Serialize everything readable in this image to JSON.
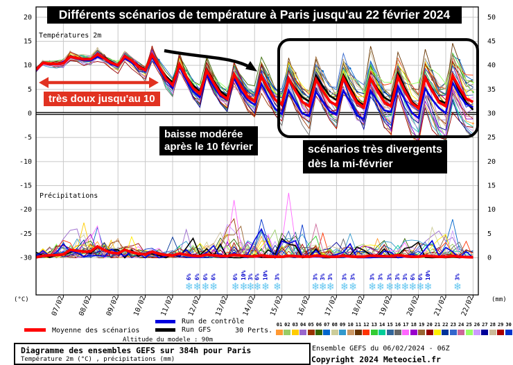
{
  "title": "Différents scénarios de température à Paris jusqu'au 22 février 2024",
  "annotations": {
    "mild": "très doux jusqu'au 10",
    "drop_line1": "baisse modérée",
    "drop_line2": "après le 10 février",
    "divergent_line1": "scénarios très divergents",
    "divergent_line2": "dès la mi-février"
  },
  "sections": {
    "temperature_label": "Températures 2m",
    "precipitation_label": "Précipitations"
  },
  "axes": {
    "left_unit": "(°C)",
    "right_unit": "(mm)",
    "left_ticks": [
      "20",
      "15",
      "10",
      "5",
      "0",
      "-5",
      "-10",
      "-15",
      "-20",
      "-25",
      "-30"
    ],
    "right_ticks": [
      "50",
      "45",
      "40",
      "35",
      "30",
      "25",
      "20",
      "15",
      "10",
      "5",
      "0"
    ]
  },
  "legend": {
    "mean_label": "Moyenne des scénarios",
    "control_label": "Run de contrôle",
    "gfs_label": "Run GFS",
    "perts_label": "30 Perts.",
    "altitude_label": "Altitude du modele : 90m",
    "mean_color": "#ff0000",
    "control_color": "#0000e0",
    "gfs_color": "#000000"
  },
  "footer": {
    "box_line1": "Diagramme des ensembles GEFS sur 384h pour Paris",
    "box_line2": "Température 2m (°C) , précipitations (mm)",
    "run_info": "Ensemble GEFS du 06/02/2024 - 06Z",
    "copyright": "Copyright 2024 Meteociel.fr"
  },
  "chart_data": {
    "type": "line",
    "title": "Diagramme des ensembles GEFS sur 384h pour Paris",
    "x_labels": [
      "07/02",
      "08/02",
      "09/02",
      "10/02",
      "11/02",
      "12/02",
      "13/02",
      "14/02",
      "15/02",
      "16/02",
      "17/02",
      "18/02",
      "19/02",
      "20/02",
      "21/02",
      "22/02"
    ],
    "days": 16,
    "steps_per_day": 4,
    "start_label": "06/02",
    "temperature": {
      "unit": "°C",
      "ylim": [
        -30,
        20
      ],
      "mean_daily": [
        9.6,
        11.0,
        11.9,
        10.8,
        10.9,
        8.2,
        6.6,
        5.6,
        5.2,
        4.6,
        4.2,
        4.6,
        4.2,
        4.6,
        4.2,
        4.6,
        5.4
      ],
      "diurnal_amplitude_daily": [
        0.5,
        0.55,
        0.6,
        0.8,
        1.9,
        2.3,
        2.5,
        2.6,
        2.7,
        2.7,
        2.7,
        2.9,
        2.9,
        3.1,
        3.1,
        3.1,
        3.0
      ],
      "ensemble_spread_daily": [
        0.8,
        1.2,
        1.4,
        1.5,
        1.8,
        2.1,
        2.6,
        3.1,
        3.6,
        4.3,
        5.0,
        5.6,
        6.1,
        6.6,
        7.2,
        8.0,
        8.6
      ],
      "control_daily": [
        9.6,
        11.2,
        11.6,
        10.5,
        10.7,
        7.6,
        6.0,
        5.0,
        4.2,
        2.4,
        1.8,
        2.4,
        1.4,
        3.2,
        2.2,
        3.2,
        4.2
      ],
      "gfs_daily": [
        9.6,
        11.0,
        11.9,
        10.8,
        10.9,
        8.4,
        7.0,
        5.8,
        5.2,
        4.4,
        5.2,
        5.6,
        4.4,
        5.6,
        4.4,
        5.2,
        3.8
      ]
    },
    "precipitation": {
      "unit": "mm",
      "ylim": [
        0,
        50
      ],
      "mean_daily": [
        0.05,
        1.0,
        1.9,
        1.3,
        1.0,
        0.7,
        0.5,
        0.5,
        0.4,
        0.3,
        0.35,
        0.3,
        0.3,
        0.45,
        0.3,
        0.3,
        0.15
      ],
      "spike_envelope_daily": [
        0.8,
        7,
        7.5,
        4.5,
        3,
        3.5,
        7,
        12,
        9,
        13.5,
        7,
        5,
        4.5,
        5.5,
        6.5,
        8,
        2.5
      ],
      "notable_spikes": [
        {
          "member": "04",
          "day_offset": 1.5,
          "mm": 6.0
        },
        {
          "member": "03",
          "day_offset": 1.75,
          "mm": 7.3
        },
        {
          "member": "07",
          "day_offset": 2.25,
          "mm": 6.3
        },
        {
          "member": "17",
          "day_offset": 7.25,
          "mm": 12.0
        },
        {
          "member": "30",
          "day_offset": 8.25,
          "mm": 8.0
        },
        {
          "member": "17",
          "day_offset": 9.25,
          "mm": 13.5
        },
        {
          "member": "24",
          "day_offset": 10.3,
          "mm": 7.0
        },
        {
          "member": "09",
          "day_offset": 11.4,
          "mm": 5.0
        },
        {
          "member": "06",
          "day_offset": 13.4,
          "mm": 4.0
        },
        {
          "member": "07",
          "day_offset": 15.3,
          "mm": 8.0
        }
      ]
    },
    "snow_probability_markers": [
      {
        "day_offset": 5.6,
        "label": "6%"
      },
      {
        "day_offset": 5.9,
        "label": "6%"
      },
      {
        "day_offset": 6.2,
        "label": "6%"
      },
      {
        "day_offset": 6.5,
        "label": "6%"
      },
      {
        "day_offset": 7.3,
        "label": "6%"
      },
      {
        "day_offset": 7.6,
        "label": "10%"
      },
      {
        "day_offset": 7.85,
        "label": "3%"
      },
      {
        "day_offset": 8.1,
        "label": "6%"
      },
      {
        "day_offset": 8.4,
        "label": "10%"
      },
      {
        "day_offset": 8.83,
        "label": "3%"
      },
      {
        "day_offset": 10.23,
        "label": "3%"
      },
      {
        "day_offset": 10.5,
        "label": "3%"
      },
      {
        "day_offset": 10.78,
        "label": "3%"
      },
      {
        "day_offset": 11.29,
        "label": "3%"
      },
      {
        "day_offset": 11.6,
        "label": "3%"
      },
      {
        "day_offset": 12.31,
        "label": "3%"
      },
      {
        "day_offset": 12.61,
        "label": "3%"
      },
      {
        "day_offset": 12.95,
        "label": "3%"
      },
      {
        "day_offset": 13.23,
        "label": "3%"
      },
      {
        "day_offset": 13.51,
        "label": "3%"
      },
      {
        "day_offset": 13.79,
        "label": "6%"
      },
      {
        "day_offset": 14.07,
        "label": "6%"
      },
      {
        "day_offset": 14.35,
        "label": "10%"
      },
      {
        "day_offset": 15.43,
        "label": "3%"
      }
    ],
    "members": [
      {
        "id": "01",
        "color": "#ff9933"
      },
      {
        "id": "02",
        "color": "#99cc66"
      },
      {
        "id": "03",
        "color": "#ffcc00"
      },
      {
        "id": "04",
        "color": "#9966cc"
      },
      {
        "id": "05",
        "color": "#993300"
      },
      {
        "id": "06",
        "color": "#336600"
      },
      {
        "id": "07",
        "color": "#0066cc"
      },
      {
        "id": "08",
        "color": "#cccc99"
      },
      {
        "id": "09",
        "color": "#3399cc"
      },
      {
        "id": "10",
        "color": "#cc9966"
      },
      {
        "id": "11",
        "color": "#663300"
      },
      {
        "id": "12",
        "color": "#ff3300"
      },
      {
        "id": "13",
        "color": "#33cc33"
      },
      {
        "id": "14",
        "color": "#00cc99"
      },
      {
        "id": "15",
        "color": "#336699"
      },
      {
        "id": "16",
        "color": "#666666"
      },
      {
        "id": "17",
        "color": "#ff66ff"
      },
      {
        "id": "18",
        "color": "#9900cc"
      },
      {
        "id": "19",
        "color": "#996633"
      },
      {
        "id": "20",
        "color": "#990000"
      },
      {
        "id": "21",
        "color": "#ffee00"
      },
      {
        "id": "22",
        "color": "#003399"
      },
      {
        "id": "23",
        "color": "#3366cc"
      },
      {
        "id": "24",
        "color": "#cc6699"
      },
      {
        "id": "25",
        "color": "#99ff66"
      },
      {
        "id": "26",
        "color": "#cc99ff"
      },
      {
        "id": "27",
        "color": "#000099"
      },
      {
        "id": "28",
        "color": "#ccbb99"
      },
      {
        "id": "29",
        "color": "#aa0000"
      },
      {
        "id": "30",
        "color": "#0033cc"
      }
    ]
  }
}
